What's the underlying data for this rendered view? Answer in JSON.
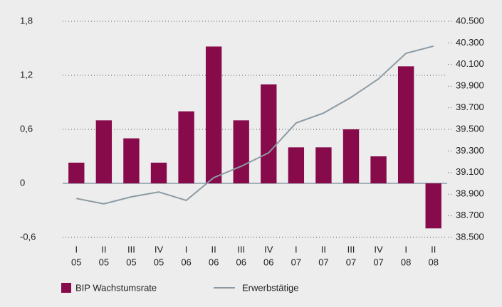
{
  "chart_data": {
    "type": "bar",
    "categories": [
      [
        "I",
        "05"
      ],
      [
        "II",
        "05"
      ],
      [
        "III",
        "05"
      ],
      [
        "IV",
        "05"
      ],
      [
        "I",
        "06"
      ],
      [
        "II",
        "06"
      ],
      [
        "III",
        "06"
      ],
      [
        "IV",
        "06"
      ],
      [
        "I",
        "07"
      ],
      [
        "II",
        "07"
      ],
      [
        "III",
        "07"
      ],
      [
        "IV",
        "07"
      ],
      [
        "I",
        "08"
      ],
      [
        "II",
        "08"
      ]
    ],
    "series": [
      {
        "name": "BIP Wachstumsrate",
        "type": "bar",
        "color": "#870a4b",
        "values": [
          0.23,
          0.7,
          0.5,
          0.23,
          0.8,
          1.52,
          0.7,
          1.1,
          0.4,
          0.4,
          0.6,
          0.3,
          1.3,
          -0.5
        ]
      },
      {
        "name": "Erwerbstätige",
        "type": "line",
        "axis": "y2",
        "color": "#8c9ba5",
        "values": [
          38860,
          38810,
          38875,
          38920,
          38842,
          39053,
          39158,
          39283,
          39559,
          39651,
          39796,
          39967,
          40204,
          40270
        ]
      }
    ],
    "ylim": [
      -0.6,
      1.8
    ],
    "yticks": [
      {
        "value": 1.8,
        "label": "1,8"
      },
      {
        "value": 1.2,
        "label": "1,2"
      },
      {
        "value": 0.6,
        "label": "0,6"
      },
      0,
      {
        "value": -0.6,
        "label": "-0,6"
      }
    ],
    "y2lim": [
      38500,
      40500
    ],
    "y2ticks": [
      {
        "value": 40500,
        "label": "40.500"
      },
      {
        "value": 40300,
        "label": "40.300"
      },
      {
        "value": 40100,
        "label": "40.100"
      },
      {
        "value": 39900,
        "label": "39.900"
      },
      {
        "value": 39700,
        "label": "39.700"
      },
      {
        "value": 39500,
        "label": "39.500"
      },
      {
        "value": 39300,
        "label": "39.300"
      },
      {
        "value": 39100,
        "label": "39.100"
      },
      {
        "value": 38900,
        "label": "38.900"
      },
      {
        "value": 38700,
        "label": "38.700"
      },
      {
        "value": 38500,
        "label": "38.500"
      }
    ],
    "grid": true,
    "legend": "bottom-left"
  }
}
